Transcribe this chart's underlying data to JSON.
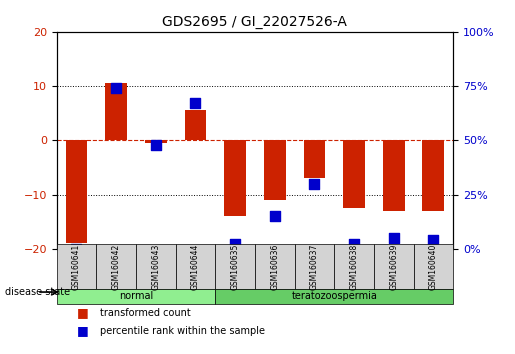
{
  "title": "GDS2695 / GI_22027526-A",
  "samples": [
    "GSM160641",
    "GSM160642",
    "GSM160643",
    "GSM160644",
    "GSM160635",
    "GSM160636",
    "GSM160637",
    "GSM160638",
    "GSM160639",
    "GSM160640"
  ],
  "transformed_count": [
    -19,
    10.5,
    -0.5,
    5.5,
    -14,
    -11,
    -7,
    -12.5,
    -13,
    -13
  ],
  "percentile_rank": [
    0,
    74,
    48,
    67,
    2,
    15,
    30,
    2,
    5,
    4
  ],
  "groups": [
    {
      "label": "normal",
      "indices": [
        0,
        1,
        2,
        3
      ],
      "color": "#90ee90"
    },
    {
      "label": "teratozoospermia",
      "indices": [
        4,
        5,
        6,
        7,
        8,
        9
      ],
      "color": "#66cc66"
    }
  ],
  "ylim_left": [
    -20,
    20
  ],
  "ylim_right": [
    0,
    100
  ],
  "yticks_left": [
    -20,
    -10,
    0,
    10,
    20
  ],
  "yticks_right": [
    0,
    25,
    50,
    75,
    100
  ],
  "bar_color": "#cc2200",
  "dot_color": "#0000cc",
  "hline_color": "#cc2200",
  "grid_color": "#000000",
  "bg_color": "#ffffff",
  "plot_bg": "#ffffff",
  "label_color_left": "#cc2200",
  "label_color_right": "#0000cc",
  "disease_state_label": "disease state",
  "legend_bar_label": "transformed count",
  "legend_dot_label": "percentile rank within the sample",
  "bar_width": 0.55,
  "dot_size": 60
}
